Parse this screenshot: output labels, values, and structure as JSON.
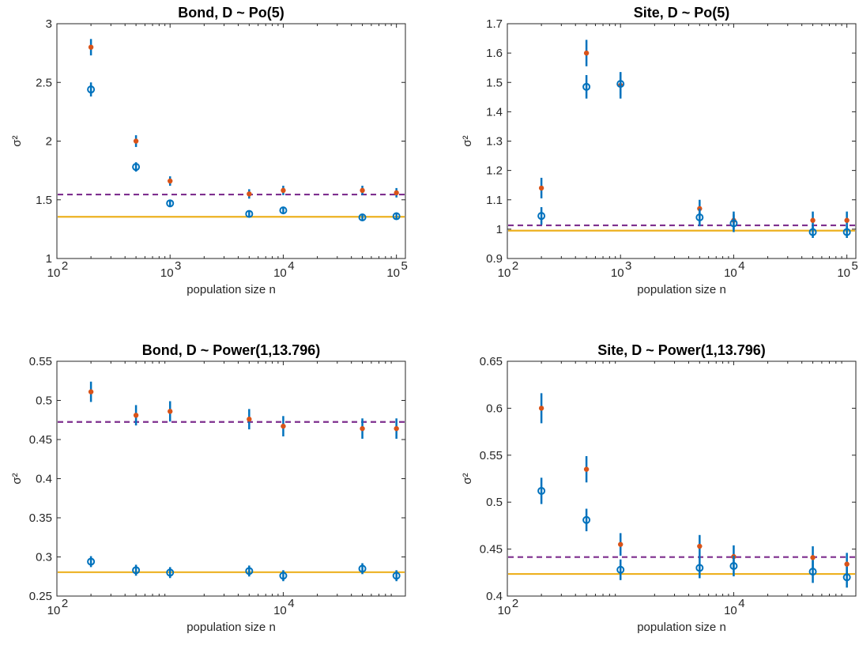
{
  "chart_data": [
    {
      "type": "scatter",
      "title": "Bond, D  ~ Po(5)",
      "xlabel": "population size n",
      "ylabel": "σ²",
      "xscale": "log",
      "xlim": [
        100,
        120000
      ],
      "ylim": [
        1,
        3
      ],
      "yticks": [
        "1",
        "1.5",
        "2",
        "2.5",
        "3"
      ],
      "xticks": [
        {
          "base": "10",
          "exp": "2",
          "value": 100
        },
        {
          "base": "10",
          "exp": "3",
          "value": 1000
        },
        {
          "base": "10",
          "exp": "4",
          "value": 10000
        },
        {
          "base": "10",
          "exp": "5",
          "value": 100000
        }
      ],
      "grid": false,
      "reference_lines": [
        {
          "style": "dashed",
          "color": "#7e2f8e",
          "y": 1.545
        },
        {
          "style": "solid",
          "color": "#edb120",
          "y": 1.355
        }
      ],
      "series": [
        {
          "marker": "dot",
          "color": "#d95319",
          "x": [
            200,
            500,
            1000,
            5000,
            10000,
            50000,
            100000
          ],
          "y": [
            2.8,
            2.0,
            1.66,
            1.55,
            1.58,
            1.58,
            1.56
          ],
          "err": [
            0.07,
            0.05,
            0.04,
            0.04,
            0.04,
            0.04,
            0.04
          ]
        },
        {
          "marker": "circle",
          "color": "#0072bd",
          "x": [
            200,
            500,
            1000,
            5000,
            10000,
            50000,
            100000
          ],
          "y": [
            2.44,
            1.78,
            1.47,
            1.38,
            1.41,
            1.35,
            1.36
          ],
          "err": [
            0.06,
            0.04,
            0.03,
            0.03,
            0.03,
            0.03,
            0.03
          ]
        }
      ]
    },
    {
      "type": "scatter",
      "title": "Site, D  ~ Po(5)",
      "xlabel": "population size n",
      "ylabel": "σ²",
      "xscale": "log",
      "xlim": [
        100,
        120000
      ],
      "ylim": [
        0.9,
        1.7
      ],
      "yticks": [
        "0.9",
        "1",
        "1.1",
        "1.2",
        "1.3",
        "1.4",
        "1.5",
        "1.6",
        "1.7"
      ],
      "xticks": [
        {
          "base": "10",
          "exp": "2",
          "value": 100
        },
        {
          "base": "10",
          "exp": "3",
          "value": 1000
        },
        {
          "base": "10",
          "exp": "4",
          "value": 10000
        },
        {
          "base": "10",
          "exp": "5",
          "value": 100000
        }
      ],
      "grid": false,
      "reference_lines": [
        {
          "style": "dashed",
          "color": "#7e2f8e",
          "y": 1.013
        },
        {
          "style": "solid",
          "color": "#edb120",
          "y": 0.995
        }
      ],
      "series": [
        {
          "marker": "dot",
          "color": "#d95319",
          "x": [
            200,
            500,
            1000,
            5000,
            10000,
            50000,
            100000
          ],
          "y": [
            1.14,
            1.6,
            1.49,
            1.07,
            1.03,
            1.03,
            1.03
          ],
          "err": [
            0.035,
            0.045,
            0.045,
            0.03,
            0.03,
            0.03,
            0.03
          ]
        },
        {
          "marker": "circle",
          "color": "#0072bd",
          "x": [
            200,
            500,
            1000,
            5000,
            10000,
            50000,
            100000
          ],
          "y": [
            1.045,
            1.485,
            1.495,
            1.04,
            1.02,
            0.99,
            0.99
          ],
          "err": [
            0.03,
            0.04,
            0.04,
            0.03,
            0.03,
            0.02,
            0.02
          ]
        }
      ]
    },
    {
      "type": "scatter",
      "title": "Bond, D  ~ Power(1,13.796)",
      "xlabel": "population size n",
      "ylabel": "σ²",
      "xscale": "log",
      "xlim": [
        100,
        120000
      ],
      "ylim": [
        0.25,
        0.55
      ],
      "yticks": [
        "0.25",
        "0.3",
        "0.35",
        "0.4",
        "0.45",
        "0.5",
        "0.55"
      ],
      "xticks": [
        {
          "base": "10",
          "exp": "2",
          "value": 100
        },
        {
          "base": "10",
          "exp": "4",
          "value": 10000
        }
      ],
      "grid": false,
      "reference_lines": [
        {
          "style": "dashed",
          "color": "#7e2f8e",
          "y": 0.4725
        },
        {
          "style": "solid",
          "color": "#edb120",
          "y": 0.2805
        }
      ],
      "series": [
        {
          "marker": "dot",
          "color": "#d95319",
          "x": [
            200,
            500,
            1000,
            5000,
            10000,
            50000,
            100000
          ],
          "y": [
            0.511,
            0.481,
            0.486,
            0.476,
            0.467,
            0.464,
            0.464
          ],
          "err": [
            0.013,
            0.013,
            0.013,
            0.013,
            0.013,
            0.013,
            0.013
          ]
        },
        {
          "marker": "circle",
          "color": "#0072bd",
          "x": [
            200,
            500,
            1000,
            5000,
            10000,
            50000,
            100000
          ],
          "y": [
            0.294,
            0.283,
            0.28,
            0.282,
            0.276,
            0.285,
            0.276
          ],
          "err": [
            0.007,
            0.007,
            0.007,
            0.007,
            0.007,
            0.007,
            0.007
          ]
        }
      ]
    },
    {
      "type": "scatter",
      "title": "Site, D  ~ Power(1,13.796)",
      "xlabel": "population size n",
      "ylabel": "σ²",
      "xscale": "log",
      "xlim": [
        100,
        120000
      ],
      "ylim": [
        0.4,
        0.65
      ],
      "yticks": [
        "0.4",
        "0.45",
        "0.5",
        "0.55",
        "0.6",
        "0.65"
      ],
      "xticks": [
        {
          "base": "10",
          "exp": "2",
          "value": 100
        },
        {
          "base": "10",
          "exp": "4",
          "value": 10000
        }
      ],
      "grid": false,
      "reference_lines": [
        {
          "style": "dashed",
          "color": "#7e2f8e",
          "y": 0.4415
        },
        {
          "style": "solid",
          "color": "#edb120",
          "y": 0.4235
        }
      ],
      "series": [
        {
          "marker": "dot",
          "color": "#d95319",
          "x": [
            200,
            500,
            1000,
            5000,
            10000,
            50000,
            100000
          ],
          "y": [
            0.6,
            0.535,
            0.455,
            0.453,
            0.442,
            0.441,
            0.434
          ],
          "err": [
            0.016,
            0.014,
            0.012,
            0.012,
            0.012,
            0.012,
            0.012
          ]
        },
        {
          "marker": "circle",
          "color": "#0072bd",
          "x": [
            200,
            500,
            1000,
            5000,
            10000,
            50000,
            100000
          ],
          "y": [
            0.512,
            0.481,
            0.428,
            0.43,
            0.432,
            0.426,
            0.42
          ],
          "err": [
            0.014,
            0.012,
            0.011,
            0.011,
            0.011,
            0.012,
            0.011
          ]
        }
      ]
    }
  ]
}
